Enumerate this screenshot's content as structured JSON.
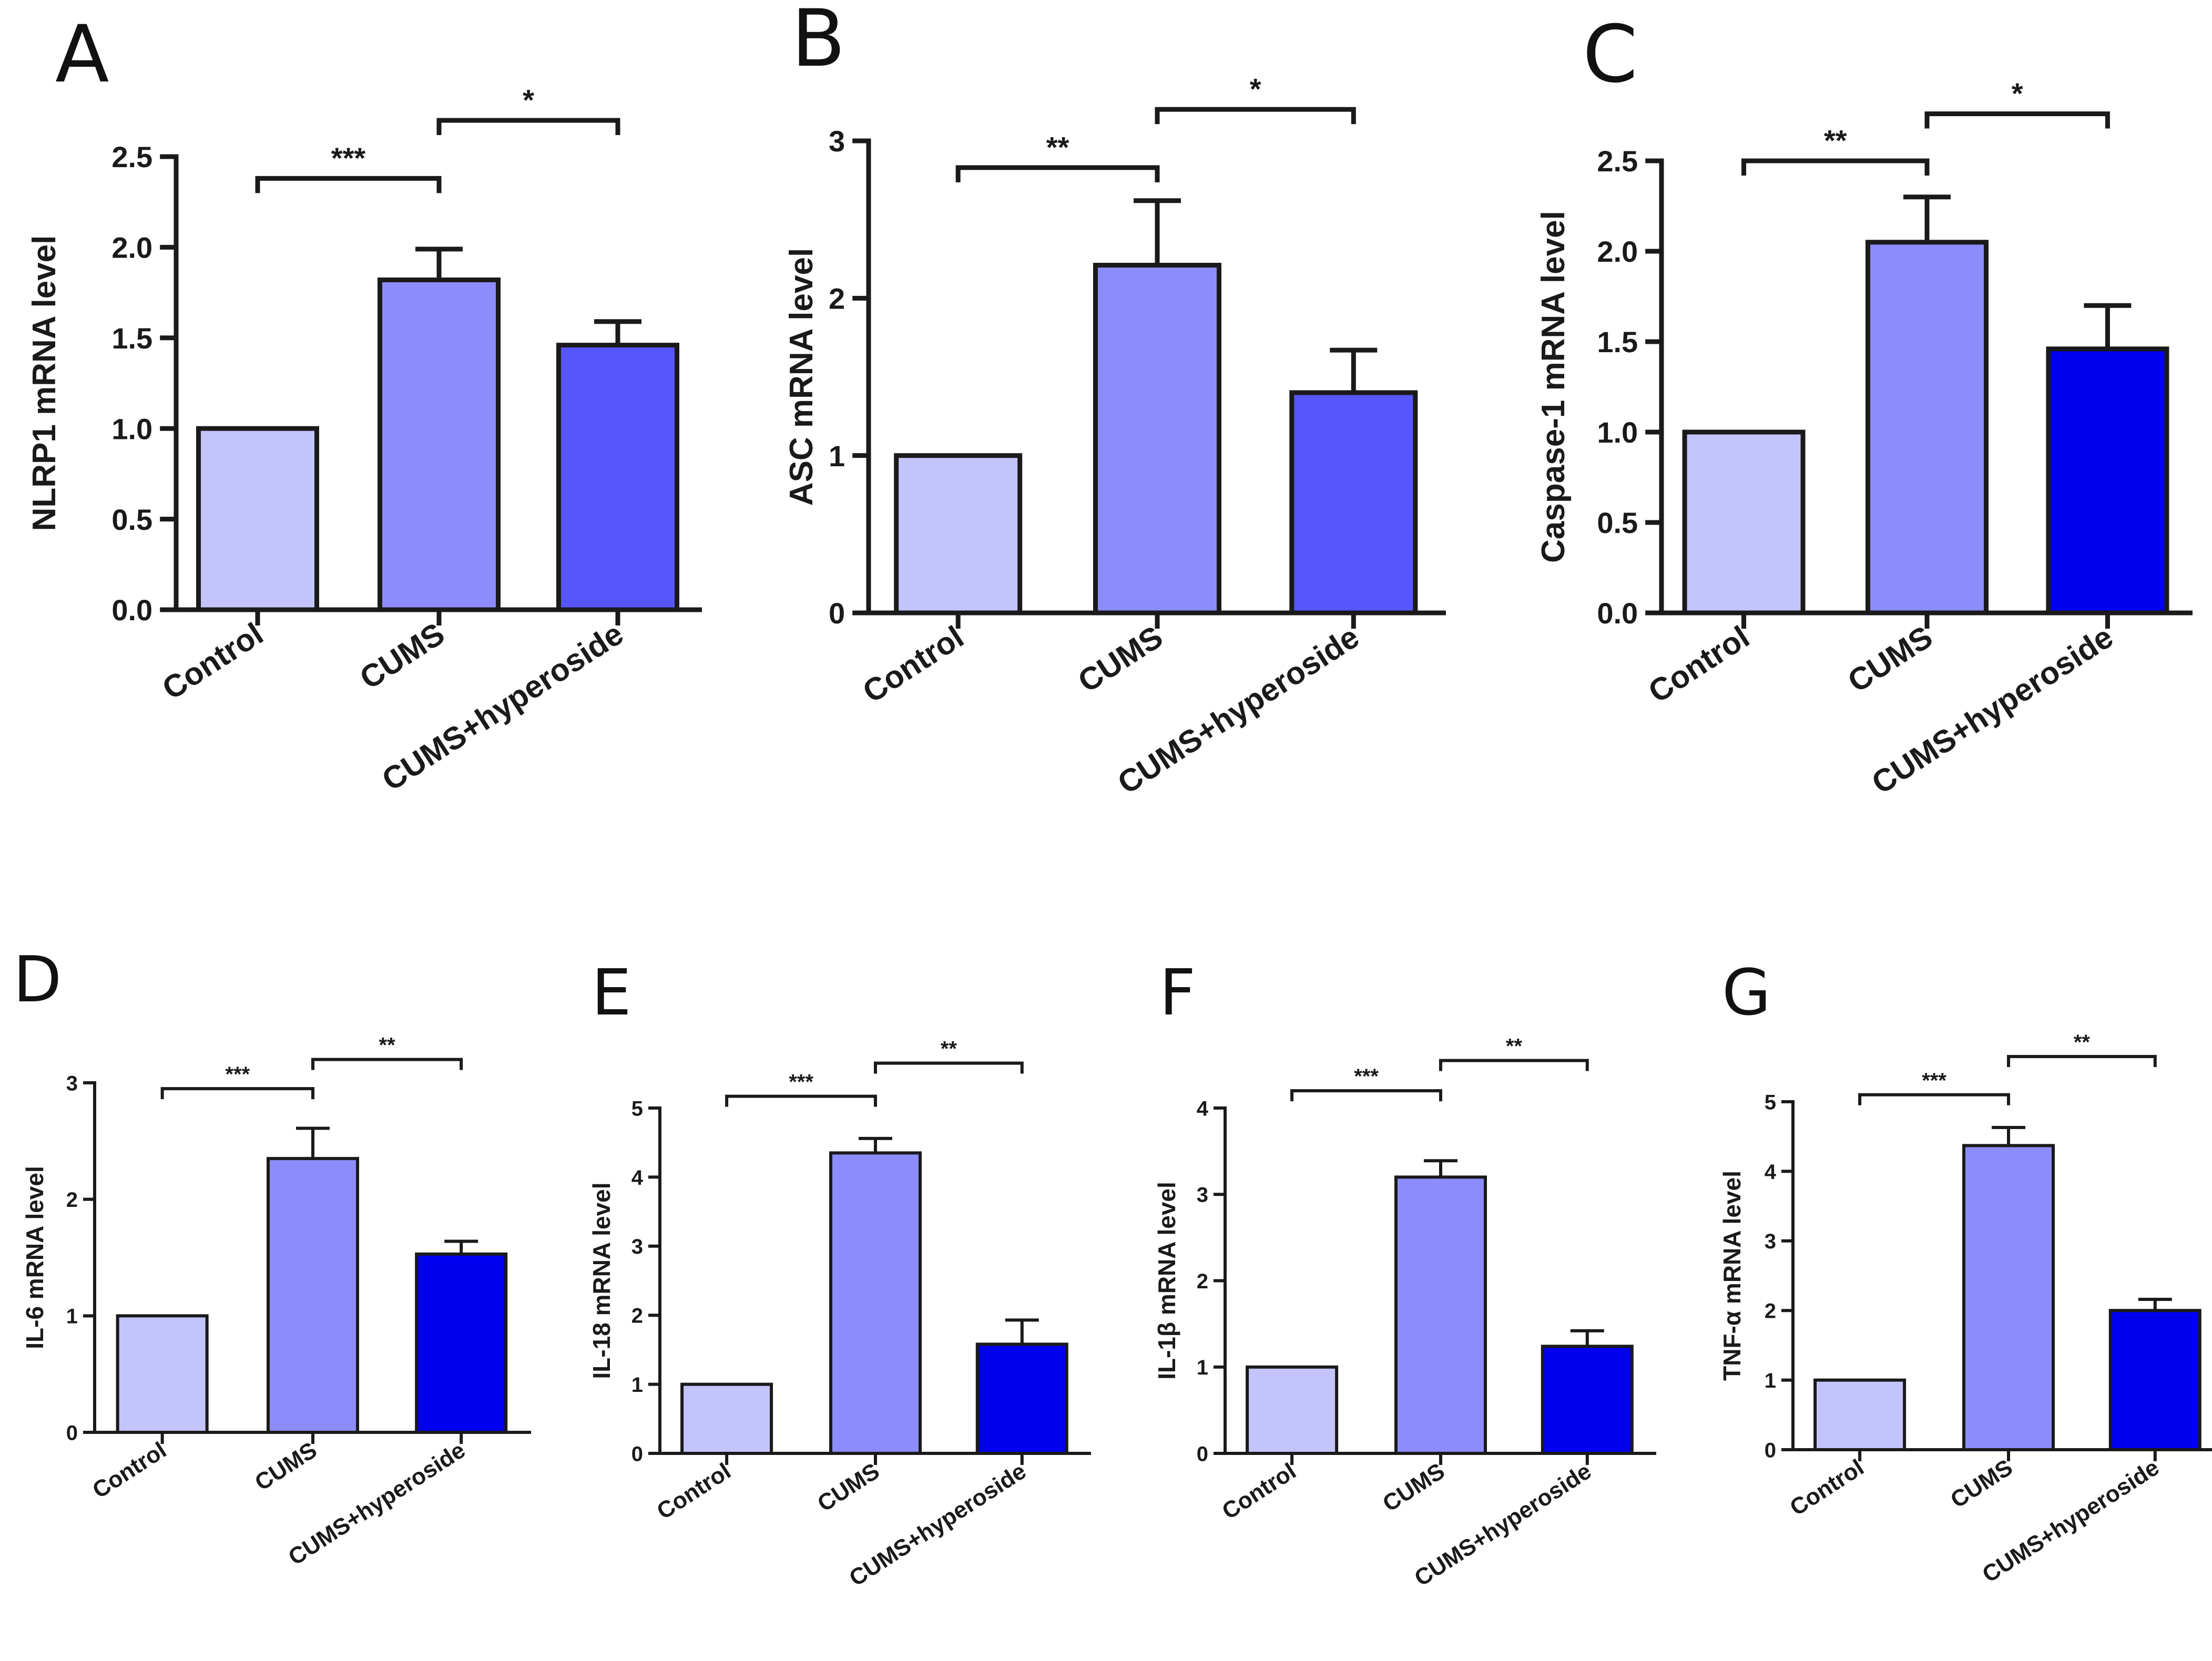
{
  "figure": {
    "bar_colors": [
      "#c4c4fc",
      "#8c8cfc",
      "#5656fc",
      "#0000ee"
    ],
    "axis_color": "#1a1a1a"
  },
  "chart_data": [
    {
      "panel": "A",
      "type": "bar",
      "categories": [
        "Control",
        "CUMS",
        "CUMS+hyperoside"
      ],
      "values": [
        1.0,
        1.82,
        1.46
      ],
      "errors": [
        0,
        0.17,
        0.13
      ],
      "colors": [
        "#c4c4fc",
        "#8c8cfc",
        "#5656fc"
      ],
      "ylabel": "NLRP1 mRNA level",
      "ylim": [
        0,
        2.5
      ],
      "yticks": [
        "0.0",
        "0.5",
        "1.0",
        "1.5",
        "2.0",
        "2.5"
      ],
      "significance": [
        {
          "from": 0,
          "to": 1,
          "label": "***",
          "level": 2.38
        },
        {
          "from": 1,
          "to": 2,
          "label": "*",
          "level": 2.7
        }
      ]
    },
    {
      "panel": "B",
      "type": "bar",
      "categories": [
        "Control",
        "CUMS",
        "CUMS+hyperoside"
      ],
      "values": [
        1.0,
        2.21,
        1.4
      ],
      "errors": [
        0,
        0.41,
        0.27
      ],
      "colors": [
        "#c4c4fc",
        "#8c8cfc",
        "#5656fc"
      ],
      "ylabel": "ASC mRNA level",
      "ylim": [
        0,
        3
      ],
      "yticks": [
        "0",
        "1",
        "2",
        "3"
      ],
      "significance": [
        {
          "from": 0,
          "to": 1,
          "label": "**",
          "level": 2.83
        },
        {
          "from": 1,
          "to": 2,
          "label": "*",
          "level": 3.2
        }
      ]
    },
    {
      "panel": "C",
      "type": "bar",
      "categories": [
        "Control",
        "CUMS",
        "CUMS+hyperoside"
      ],
      "values": [
        1.0,
        2.05,
        1.46
      ],
      "errors": [
        0,
        0.25,
        0.24
      ],
      "colors": [
        "#c4c4fc",
        "#8c8cfc",
        "#0000ee"
      ],
      "ylabel": "Caspase-1 mRNA level",
      "ylim": [
        0,
        2.5
      ],
      "yticks": [
        "0.0",
        "0.5",
        "1.0",
        "1.5",
        "2.0",
        "2.5"
      ],
      "significance": [
        {
          "from": 0,
          "to": 1,
          "label": "**",
          "level": 2.5
        },
        {
          "from": 1,
          "to": 2,
          "label": "*",
          "level": 2.76
        }
      ]
    },
    {
      "panel": "D",
      "type": "bar",
      "categories": [
        "Control",
        "CUMS",
        "CUMS+hyperoside"
      ],
      "values": [
        1.0,
        2.35,
        1.53
      ],
      "errors": [
        0,
        0.26,
        0.11
      ],
      "colors": [
        "#c4c4fc",
        "#8c8cfc",
        "#0000ee"
      ],
      "ylabel": "IL-6 mRNA level",
      "ylim": [
        0,
        3
      ],
      "yticks": [
        "0",
        "1",
        "2",
        "3"
      ],
      "significance": [
        {
          "from": 0,
          "to": 1,
          "label": "***",
          "level": 2.95
        },
        {
          "from": 1,
          "to": 2,
          "label": "**",
          "level": 3.2
        }
      ]
    },
    {
      "panel": "E",
      "type": "bar",
      "categories": [
        "Control",
        "CUMS",
        "CUMS+hyperoside"
      ],
      "values": [
        1.0,
        4.35,
        1.58
      ],
      "errors": [
        0,
        0.21,
        0.35
      ],
      "colors": [
        "#c4c4fc",
        "#8c8cfc",
        "#0000ee"
      ],
      "ylabel": "IL-18 mRNA level",
      "ylim": [
        0,
        5
      ],
      "yticks": [
        "0",
        "1",
        "2",
        "3",
        "4",
        "5"
      ],
      "significance": [
        {
          "from": 0,
          "to": 1,
          "label": "***",
          "level": 5.17
        },
        {
          "from": 1,
          "to": 2,
          "label": "**",
          "level": 5.65
        }
      ]
    },
    {
      "panel": "F",
      "type": "bar",
      "categories": [
        "Control",
        "CUMS",
        "CUMS+hyperoside"
      ],
      "values": [
        1.0,
        3.2,
        1.24
      ],
      "errors": [
        0,
        0.19,
        0.18
      ],
      "colors": [
        "#c4c4fc",
        "#8c8cfc",
        "#0000ee"
      ],
      "ylabel": "IL-1β mRNA level",
      "ylim": [
        0,
        4
      ],
      "yticks": [
        "0",
        "1",
        "2",
        "3",
        "4"
      ],
      "significance": [
        {
          "from": 0,
          "to": 1,
          "label": "***",
          "level": 4.2
        },
        {
          "from": 1,
          "to": 2,
          "label": "**",
          "level": 4.55
        }
      ]
    },
    {
      "panel": "G",
      "type": "bar",
      "categories": [
        "Control",
        "CUMS",
        "CUMS+hyperoside"
      ],
      "values": [
        1.0,
        4.37,
        2.0
      ],
      "errors": [
        0,
        0.26,
        0.16
      ],
      "colors": [
        "#c4c4fc",
        "#8c8cfc",
        "#0000ee"
      ],
      "ylabel": "TNF-α mRNA level",
      "ylim": [
        0,
        5
      ],
      "yticks": [
        "0",
        "1",
        "2",
        "3",
        "4",
        "5"
      ],
      "significance": [
        {
          "from": 0,
          "to": 1,
          "label": "***",
          "level": 5.1
        },
        {
          "from": 1,
          "to": 2,
          "label": "**",
          "level": 5.65
        }
      ]
    }
  ]
}
